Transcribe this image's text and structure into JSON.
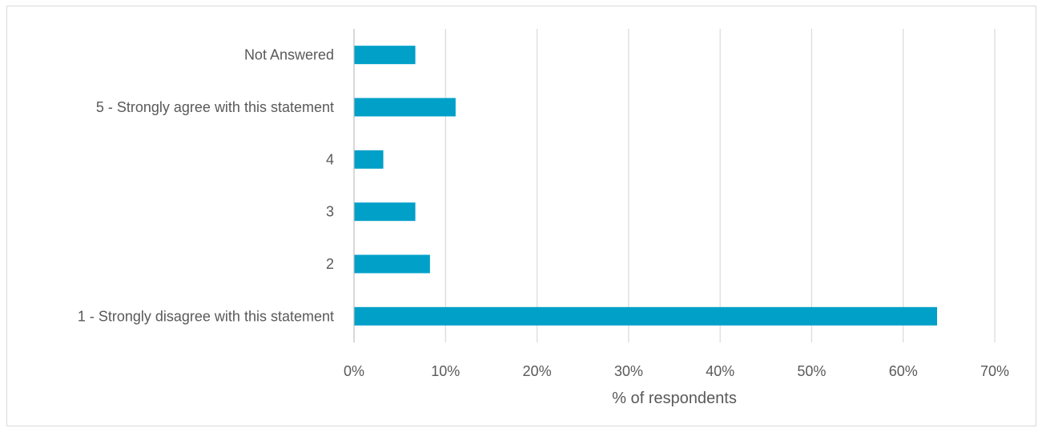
{
  "chart_data": {
    "type": "bar",
    "orientation": "horizontal",
    "categories": [
      "Not Answered",
      "5 - Strongly agree with this statement",
      "4",
      "3",
      "2",
      "1 - Strongly disagree with this statement"
    ],
    "values": [
      6.7,
      11.1,
      3.2,
      6.7,
      8.3,
      63.7
    ],
    "value_unit": "%",
    "xlabel": "% of respondents",
    "ylabel": "",
    "xlim": [
      0,
      70
    ],
    "x_ticks": [
      "0%",
      "10%",
      "20%",
      "30%",
      "40%",
      "50%",
      "60%",
      "70%"
    ],
    "x_tick_values": [
      0,
      10,
      20,
      30,
      40,
      50,
      60,
      70
    ],
    "grid": "vertical",
    "legend": "none",
    "bar_color": "#00A0C8"
  }
}
